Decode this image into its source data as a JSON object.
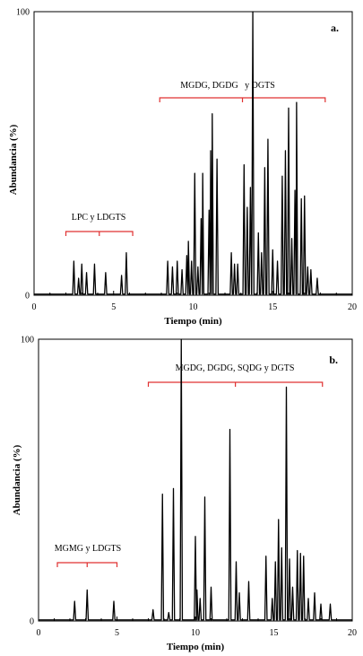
{
  "colors": {
    "trace": "#000000",
    "bracket": "#e03030",
    "axis": "#000000"
  },
  "chart_data": [
    {
      "type": "line",
      "panel_label": "a.",
      "xlabel": "Tiempo (min)",
      "ylabel": "Abundancia (%)",
      "xlim": [
        0,
        20
      ],
      "ylim": [
        0,
        100
      ],
      "xticks": [
        "0",
        "5",
        "10",
        "15",
        "20"
      ],
      "yticks": [
        "0",
        "100"
      ],
      "grid": false,
      "groups": [
        {
          "label": "LPC y LDGTS",
          "x_start": 2.0,
          "x_end": 6.2
        },
        {
          "label": "MGDG, DGDG   y DGTS",
          "x_start": 7.9,
          "x_end": 18.3
        }
      ],
      "peaks": [
        {
          "x": 2.5,
          "y": 12
        },
        {
          "x": 2.8,
          "y": 6
        },
        {
          "x": 3.0,
          "y": 11
        },
        {
          "x": 3.3,
          "y": 8
        },
        {
          "x": 3.8,
          "y": 11
        },
        {
          "x": 4.5,
          "y": 8
        },
        {
          "x": 5.5,
          "y": 7
        },
        {
          "x": 5.8,
          "y": 15
        },
        {
          "x": 8.4,
          "y": 12
        },
        {
          "x": 8.7,
          "y": 10
        },
        {
          "x": 9.0,
          "y": 12
        },
        {
          "x": 9.3,
          "y": 9
        },
        {
          "x": 9.6,
          "y": 14
        },
        {
          "x": 9.7,
          "y": 19
        },
        {
          "x": 9.9,
          "y": 12
        },
        {
          "x": 10.1,
          "y": 43
        },
        {
          "x": 10.3,
          "y": 10
        },
        {
          "x": 10.5,
          "y": 27
        },
        {
          "x": 10.6,
          "y": 43
        },
        {
          "x": 11.0,
          "y": 30
        },
        {
          "x": 11.1,
          "y": 51
        },
        {
          "x": 11.2,
          "y": 64
        },
        {
          "x": 11.5,
          "y": 48
        },
        {
          "x": 12.4,
          "y": 15
        },
        {
          "x": 12.6,
          "y": 11
        },
        {
          "x": 12.8,
          "y": 11
        },
        {
          "x": 13.2,
          "y": 46
        },
        {
          "x": 13.4,
          "y": 31
        },
        {
          "x": 13.6,
          "y": 38
        },
        {
          "x": 13.75,
          "y": 100
        },
        {
          "x": 14.1,
          "y": 22
        },
        {
          "x": 14.3,
          "y": 15
        },
        {
          "x": 14.5,
          "y": 45
        },
        {
          "x": 14.7,
          "y": 55
        },
        {
          "x": 15.0,
          "y": 16
        },
        {
          "x": 15.3,
          "y": 12
        },
        {
          "x": 15.6,
          "y": 42
        },
        {
          "x": 15.8,
          "y": 51
        },
        {
          "x": 16.0,
          "y": 66
        },
        {
          "x": 16.2,
          "y": 20
        },
        {
          "x": 16.4,
          "y": 37
        },
        {
          "x": 16.5,
          "y": 68
        },
        {
          "x": 16.8,
          "y": 34
        },
        {
          "x": 17.0,
          "y": 35
        },
        {
          "x": 17.2,
          "y": 10
        },
        {
          "x": 17.4,
          "y": 9
        },
        {
          "x": 17.8,
          "y": 6
        }
      ]
    },
    {
      "type": "line",
      "panel_label": "b.",
      "xlabel": "Tiempo (min)",
      "ylabel": "Abundancia (%)",
      "xlim": [
        0,
        20
      ],
      "ylim": [
        0,
        100
      ],
      "xticks": [
        "0",
        "5",
        "10",
        "15",
        "20"
      ],
      "yticks": [
        "0",
        "100"
      ],
      "grid": false,
      "groups": [
        {
          "label": "MGMG y LDGTS",
          "x_start": 1.2,
          "x_end": 5.0
        },
        {
          "label": "MGDG, DGDG, SQDG y DGTS",
          "x_start": 7.0,
          "x_end": 18.1
        }
      ],
      "peaks": [
        {
          "x": 2.3,
          "y": 7
        },
        {
          "x": 3.1,
          "y": 11
        },
        {
          "x": 4.8,
          "y": 7
        },
        {
          "x": 7.3,
          "y": 4
        },
        {
          "x": 7.9,
          "y": 45
        },
        {
          "x": 8.3,
          "y": 3
        },
        {
          "x": 8.6,
          "y": 47
        },
        {
          "x": 9.1,
          "y": 100
        },
        {
          "x": 10.0,
          "y": 30
        },
        {
          "x": 10.1,
          "y": 11
        },
        {
          "x": 10.3,
          "y": 8
        },
        {
          "x": 10.6,
          "y": 44
        },
        {
          "x": 11.0,
          "y": 12
        },
        {
          "x": 12.2,
          "y": 68
        },
        {
          "x": 12.6,
          "y": 21
        },
        {
          "x": 12.8,
          "y": 10
        },
        {
          "x": 13.4,
          "y": 14
        },
        {
          "x": 14.5,
          "y": 23
        },
        {
          "x": 14.9,
          "y": 8
        },
        {
          "x": 15.1,
          "y": 21
        },
        {
          "x": 15.3,
          "y": 36
        },
        {
          "x": 15.5,
          "y": 26
        },
        {
          "x": 15.8,
          "y": 83
        },
        {
          "x": 16.0,
          "y": 22
        },
        {
          "x": 16.2,
          "y": 12
        },
        {
          "x": 16.5,
          "y": 25
        },
        {
          "x": 16.7,
          "y": 24
        },
        {
          "x": 16.9,
          "y": 23
        },
        {
          "x": 17.2,
          "y": 8
        },
        {
          "x": 17.6,
          "y": 10
        },
        {
          "x": 18.0,
          "y": 6
        },
        {
          "x": 18.6,
          "y": 6
        }
      ]
    }
  ]
}
